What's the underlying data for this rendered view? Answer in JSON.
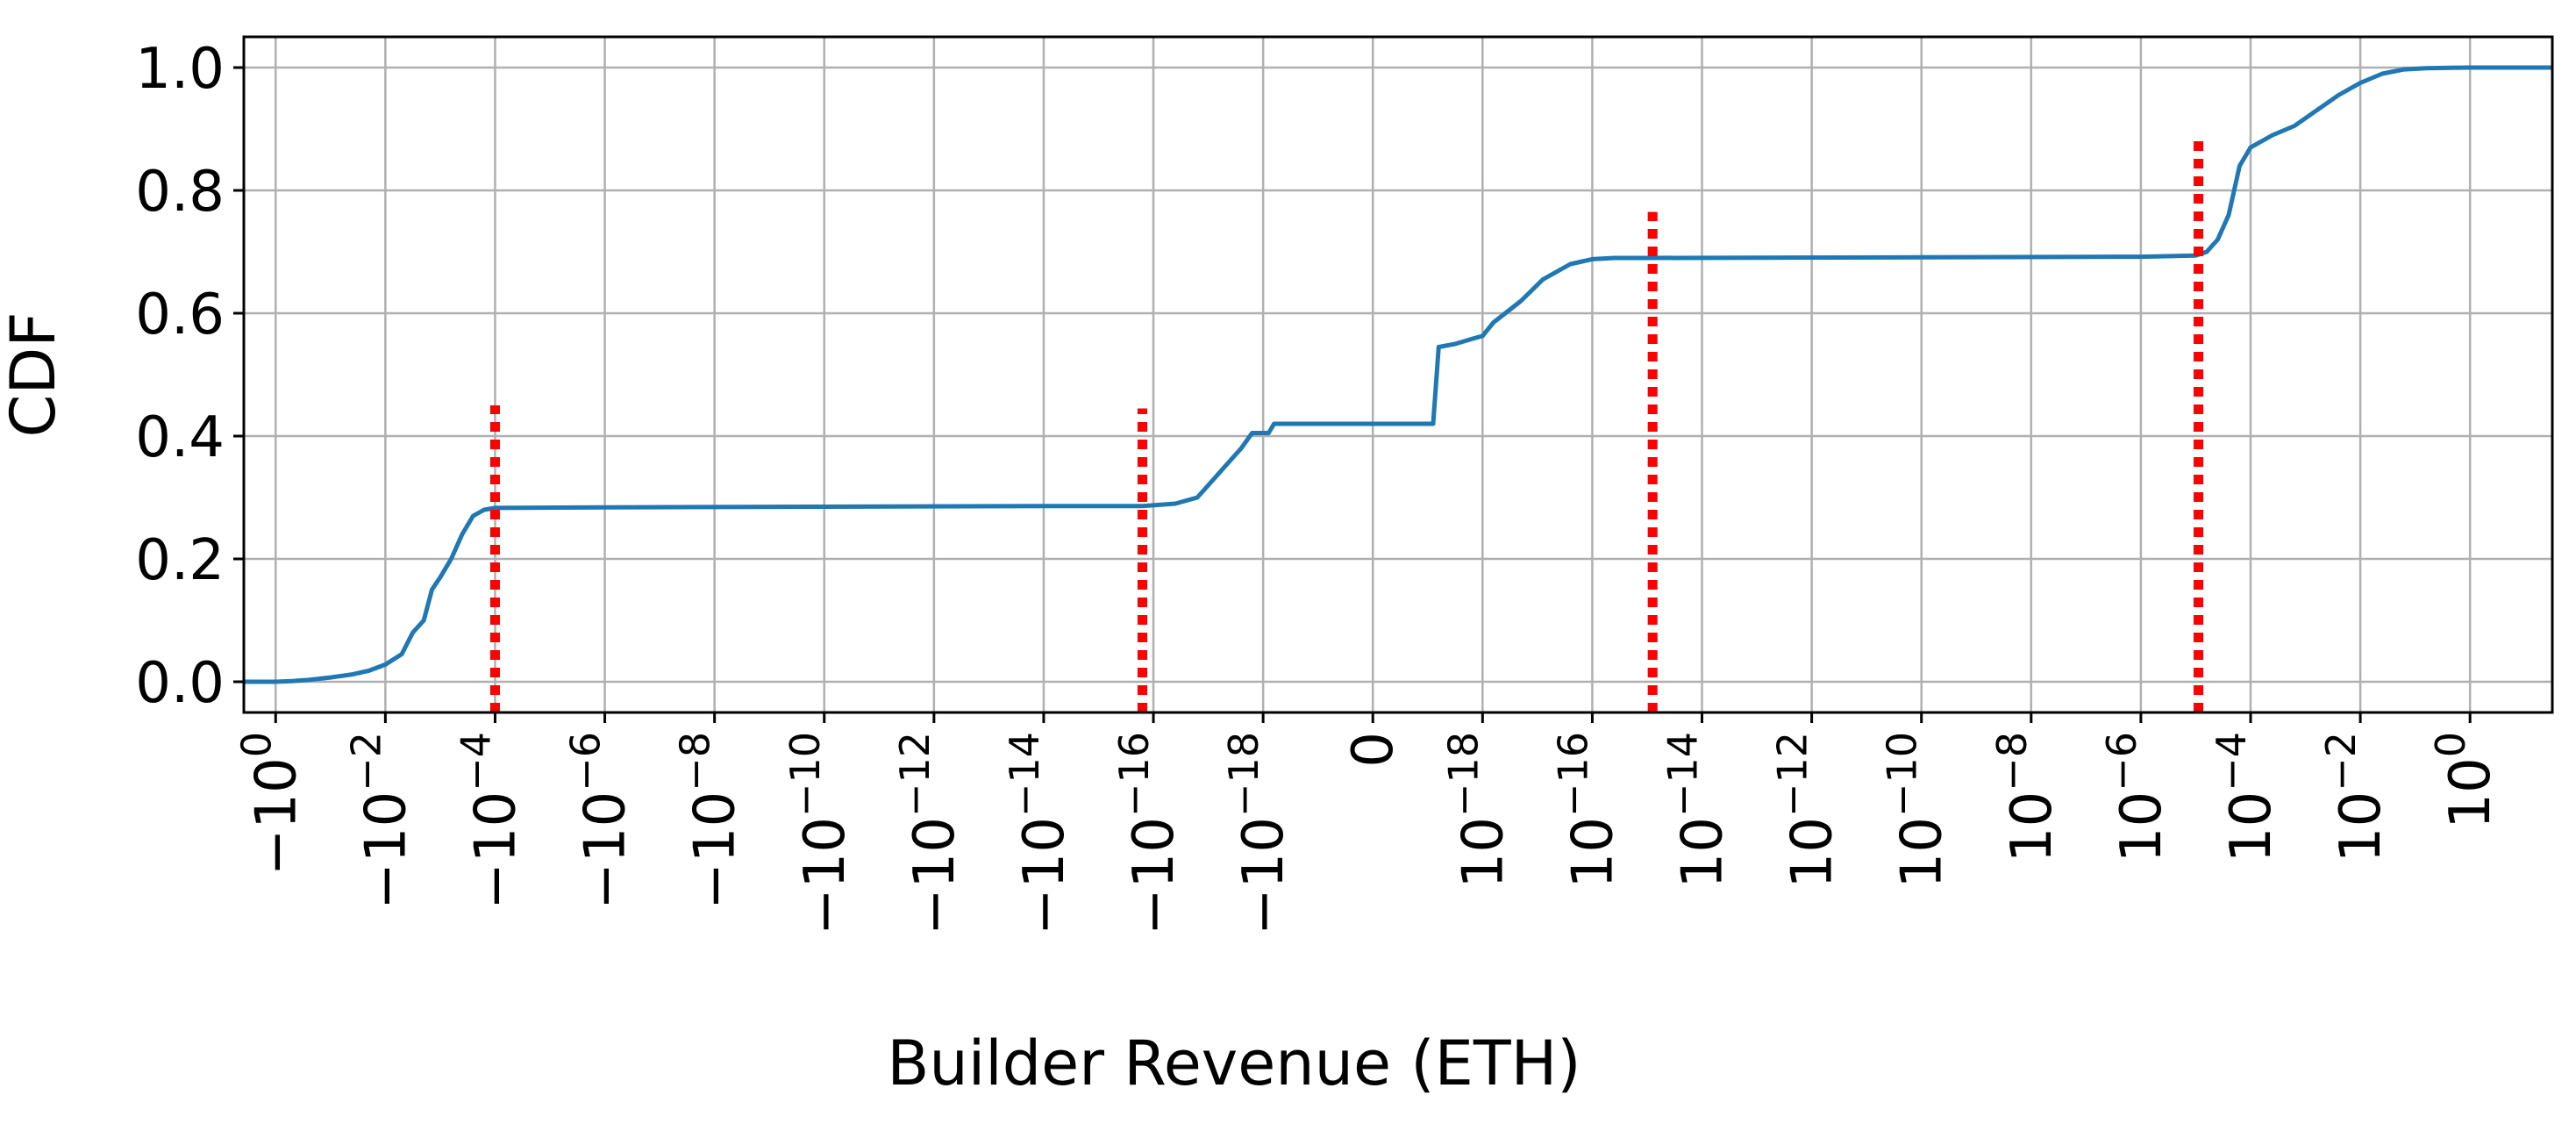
{
  "chart_data": {
    "type": "line",
    "title": "",
    "xlabel": "Builder Revenue (ETH)",
    "ylabel": "CDF",
    "x_scale": "symlog",
    "xlim": [
      "-10^0.58",
      "10^1.5"
    ],
    "ylim": [
      -0.05,
      1.05
    ],
    "grid": true,
    "x_ticks": [
      {
        "base": "−10",
        "exp": "0"
      },
      {
        "base": "−10",
        "exp": "−2"
      },
      {
        "base": "−10",
        "exp": "−4"
      },
      {
        "base": "−10",
        "exp": "−6"
      },
      {
        "base": "−10",
        "exp": "−8"
      },
      {
        "base": "−10",
        "exp": "−10"
      },
      {
        "base": "−10",
        "exp": "−12"
      },
      {
        "base": "−10",
        "exp": "−14"
      },
      {
        "base": "−10",
        "exp": "−16"
      },
      {
        "base": "−10",
        "exp": "−18"
      },
      {
        "base": "0",
        "exp": ""
      },
      {
        "base": "10",
        "exp": "−18"
      },
      {
        "base": "10",
        "exp": "−16"
      },
      {
        "base": "10",
        "exp": "−14"
      },
      {
        "base": "10",
        "exp": "−12"
      },
      {
        "base": "10",
        "exp": "−10"
      },
      {
        "base": "10",
        "exp": "−8"
      },
      {
        "base": "10",
        "exp": "−6"
      },
      {
        "base": "10",
        "exp": "−4"
      },
      {
        "base": "10",
        "exp": "−2"
      },
      {
        "base": "10",
        "exp": "0"
      }
    ],
    "y_ticks": [
      "0.0",
      "0.2",
      "0.4",
      "0.6",
      "0.8",
      "1.0"
    ],
    "y_tick_values": [
      0.0,
      0.2,
      0.4,
      0.6,
      0.8,
      1.0
    ],
    "series": [
      {
        "color": "#1f77b4",
        "points": [
          [
            "-10^0.58",
            0.0
          ],
          [
            "-10^0",
            0.0
          ],
          [
            "-10^-0.3",
            0.001
          ],
          [
            "-10^-0.6",
            0.003
          ],
          [
            "-10^-1",
            0.007
          ],
          [
            "-10^-1.4",
            0.012
          ],
          [
            "-10^-1.7",
            0.018
          ],
          [
            "-10^-2",
            0.028
          ],
          [
            "-10^-2.3",
            0.045
          ],
          [
            "-10^-2.5",
            0.08
          ],
          [
            "-10^-2.7",
            0.1
          ],
          [
            "-10^-2.85",
            0.15
          ],
          [
            "-10^-3",
            0.17
          ],
          [
            "-10^-3.2",
            0.2
          ],
          [
            "-10^-3.4",
            0.24
          ],
          [
            "-10^-3.6",
            0.27
          ],
          [
            "-10^-3.8",
            0.28
          ],
          [
            "-10^-4",
            0.283
          ],
          [
            "-10^-6",
            0.284
          ],
          [
            "-10^-10",
            0.285
          ],
          [
            "-10^-14",
            0.286
          ],
          [
            "-10^-15.8",
            0.286
          ],
          [
            "-10^-16.4",
            0.29
          ],
          [
            "-10^-16.8",
            0.3
          ],
          [
            "-10^-17",
            0.32
          ],
          [
            "-10^-17.3",
            0.35
          ],
          [
            "-10^-17.6",
            0.38
          ],
          [
            "-10^-17.8",
            0.405
          ],
          [
            "-10^-18.1",
            0.405
          ],
          [
            "-10^-18.2",
            0.42
          ],
          [
            "-10^-18.9",
            0.42
          ],
          [
            "10^-18.9",
            0.42
          ],
          [
            "10^-18.8",
            0.545
          ],
          [
            "10^-18.5",
            0.55
          ],
          [
            "10^-18.2",
            0.558
          ],
          [
            "10^-18",
            0.563
          ],
          [
            "10^-17.8",
            0.585
          ],
          [
            "10^-17.3",
            0.62
          ],
          [
            "10^-16.9",
            0.655
          ],
          [
            "10^-16.4",
            0.68
          ],
          [
            "10^-16",
            0.688
          ],
          [
            "10^-15.6",
            0.69
          ],
          [
            "10^-15",
            0.69
          ],
          [
            "10^-10",
            0.691
          ],
          [
            "10^-6",
            0.692
          ],
          [
            "10^-5",
            0.694
          ],
          [
            "10^-4.8",
            0.7
          ],
          [
            "10^-4.6",
            0.72
          ],
          [
            "10^-4.4",
            0.76
          ],
          [
            "10^-4.2",
            0.84
          ],
          [
            "10^-4",
            0.87
          ],
          [
            "10^-3.6",
            0.89
          ],
          [
            "10^-3.2",
            0.905
          ],
          [
            "10^-2.8",
            0.93
          ],
          [
            "10^-2.4",
            0.955
          ],
          [
            "10^-2",
            0.975
          ],
          [
            "10^-1.6",
            0.99
          ],
          [
            "10^-1.2",
            0.997
          ],
          [
            "10^-0.8",
            0.999
          ],
          [
            "10^0",
            1.0
          ],
          [
            "10^1.5",
            1.0
          ]
        ]
      }
    ],
    "reference_lines": [
      {
        "color": "#ff0000",
        "style": "dotted",
        "x": "-10^-4",
        "y_top": 0.45
      },
      {
        "color": "#ff0000",
        "style": "dotted",
        "x": "-10^-15.8",
        "y_top": 0.445
      },
      {
        "color": "#ff0000",
        "style": "dotted",
        "x": "10^-14.9",
        "y_top": 0.765
      },
      {
        "color": "#ff0000",
        "style": "dotted",
        "x": "10^-4.95",
        "y_top": 0.88
      }
    ]
  }
}
